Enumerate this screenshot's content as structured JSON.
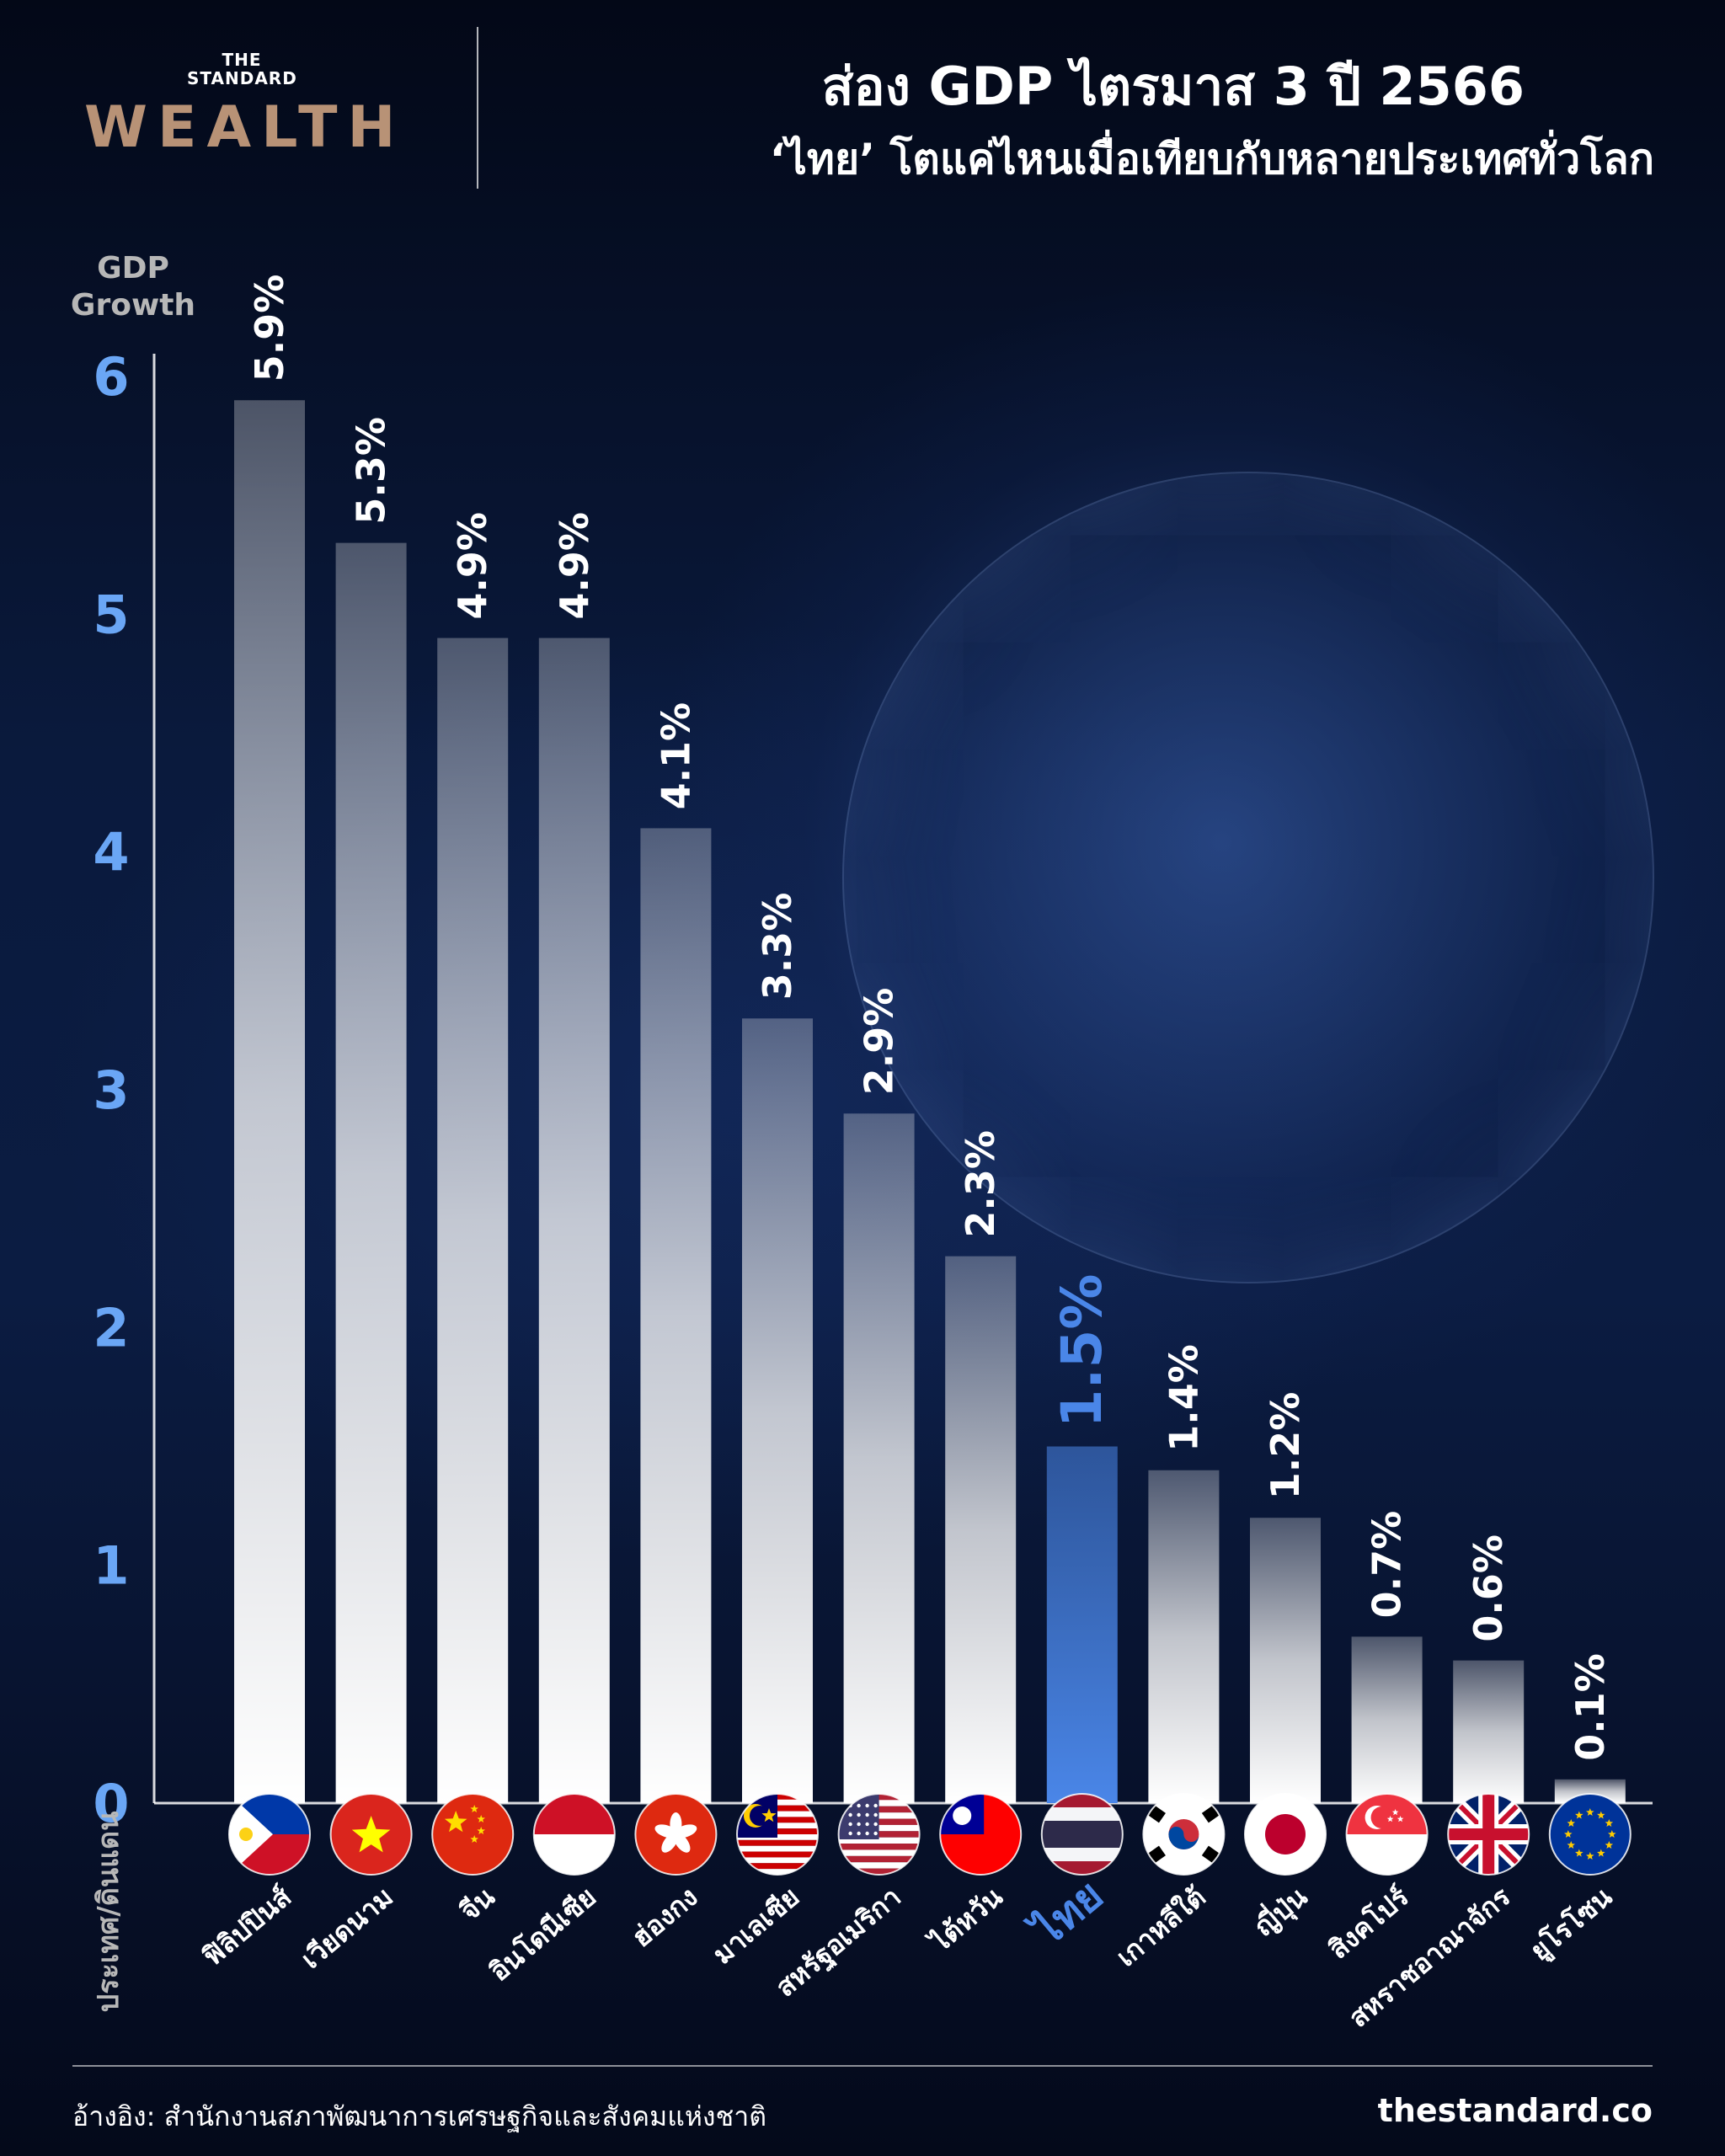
{
  "brand": {
    "the_standard": "THE STANDARD",
    "wealth": "WEALTH"
  },
  "title": {
    "line1": "ส่อง GDP ไตรมาส 3 ปี 2566",
    "line2": "‘ไทย’ โตแค่ไหนเมื่อเทียบกับหลายประเทศทั่วโลก"
  },
  "footer": {
    "source": "อ้างอิง: สำนักงานสภาพัฒนาการเศรษฐกิจและสังคมแห่งชาติ",
    "site": "thestandard.co"
  },
  "colors": {
    "bar_white": "#ffffff",
    "highlight": "#4a86e8",
    "tick_blue": "#6aa6f5",
    "axis_label": "#b7b7b7"
  },
  "chart_data": {
    "type": "bar",
    "ylabel": "GDP Growth",
    "xlabel": "ประเทศ/ดินแดน",
    "ylim": [
      0,
      6
    ],
    "yticks": [
      "0",
      "1",
      "2",
      "3",
      "4",
      "5",
      "6"
    ],
    "grid": false,
    "highlight_category": "ไทย",
    "categories": [
      "ฟิลิปปินส์",
      "เวียดนาม",
      "จีน",
      "อินโดนีเซีย",
      "ฮ่องกง",
      "มาเลเซีย",
      "สหรัฐอเมริกา",
      "ไต้หวัน",
      "ไทย",
      "เกาหลีใต้",
      "ญี่ปุ่น",
      "สิงคโปร์",
      "สหราชอาณาจักร",
      "ยูโรโซน"
    ],
    "values": [
      5.9,
      5.3,
      4.9,
      4.9,
      4.1,
      3.3,
      2.9,
      2.3,
      1.5,
      1.4,
      1.2,
      0.7,
      0.6,
      0.1
    ],
    "value_labels": [
      "5.9%",
      "5.3%",
      "4.9%",
      "4.9%",
      "4.1%",
      "3.3%",
      "2.9%",
      "2.3%",
      "1.5%",
      "1.4%",
      "1.2%",
      "0.7%",
      "0.6%",
      "0.1%"
    ],
    "flags": [
      "philippines-flag-icon",
      "vietnam-flag-icon",
      "china-flag-icon",
      "indonesia-flag-icon",
      "hong-kong-flag-icon",
      "malaysia-flag-icon",
      "usa-flag-icon",
      "taiwan-flag-icon",
      "thailand-flag-icon",
      "south-korea-flag-icon",
      "japan-flag-icon",
      "singapore-flag-icon",
      "uk-flag-icon",
      "eurozone-flag-icon"
    ]
  }
}
